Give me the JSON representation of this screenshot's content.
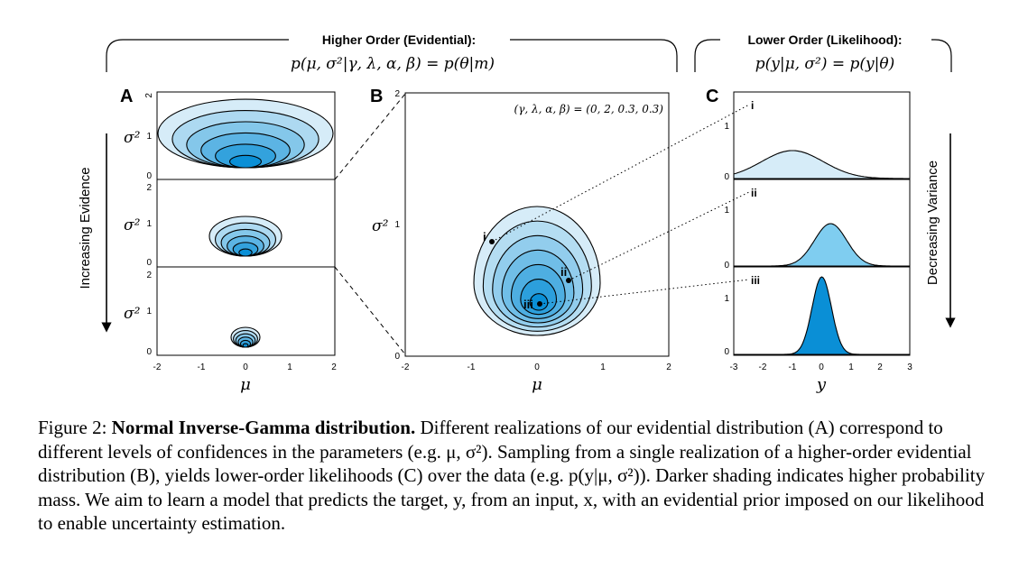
{
  "headers": {
    "higher_title": "Higher Order (Evidential):",
    "higher_formula": "p(μ, σ²|γ, λ, α, β) = p(θ|m)",
    "lower_title": "Lower Order (Likelihood):",
    "lower_formula": "p(y|μ, σ²) = p(y|θ)"
  },
  "panel_letters": {
    "a": "A",
    "b": "B",
    "c": "C"
  },
  "side_labels": {
    "left": "Increasing Evidence",
    "right": "Decreasing Variance"
  },
  "axis_labels": {
    "sigma2": "σ²",
    "mu": "μ",
    "y": "y"
  },
  "param_text": "(γ, λ, α, β) = (0, 2, 0.3, 0.3)",
  "sample_labels": [
    "i",
    "ii",
    "iii"
  ],
  "ticks": {
    "a_y": [
      "2",
      "1",
      "0"
    ],
    "a_x": [
      "-2",
      "-1",
      "0",
      "1",
      "2"
    ],
    "b_y": [
      "2",
      "1",
      "0"
    ],
    "b_x": [
      "-2",
      "-1",
      "0",
      "1",
      "2"
    ],
    "c_y": [
      "1",
      "0"
    ],
    "c_x": [
      "-3",
      "-2",
      "-1",
      "0",
      "1",
      "2",
      "3"
    ]
  },
  "colors": {
    "light_fill": "#d6ecf8",
    "mid_fill": "#7fcdf0",
    "dark_fill": "#0a8fd6",
    "contour_dark": "#1e9ae0",
    "stroke": "#000000"
  },
  "caption": {
    "label": "Figure 2:",
    "title": "Normal Inverse-Gamma distribution.",
    "body": "Different realizations of our evidential distribution (A) correspond to different levels of confidences in the parameters (e.g. μ, σ²). Sampling from a single realization of a higher-order evidential distribution (B), yields lower-order likelihoods (C) over the data (e.g. p(y|μ, σ²)). Darker shading indicates higher probability mass. We aim to learn a model that predicts the target, y, from an input, x, with an evidential prior imposed on our likelihood to enable uncertainty estimation."
  }
}
